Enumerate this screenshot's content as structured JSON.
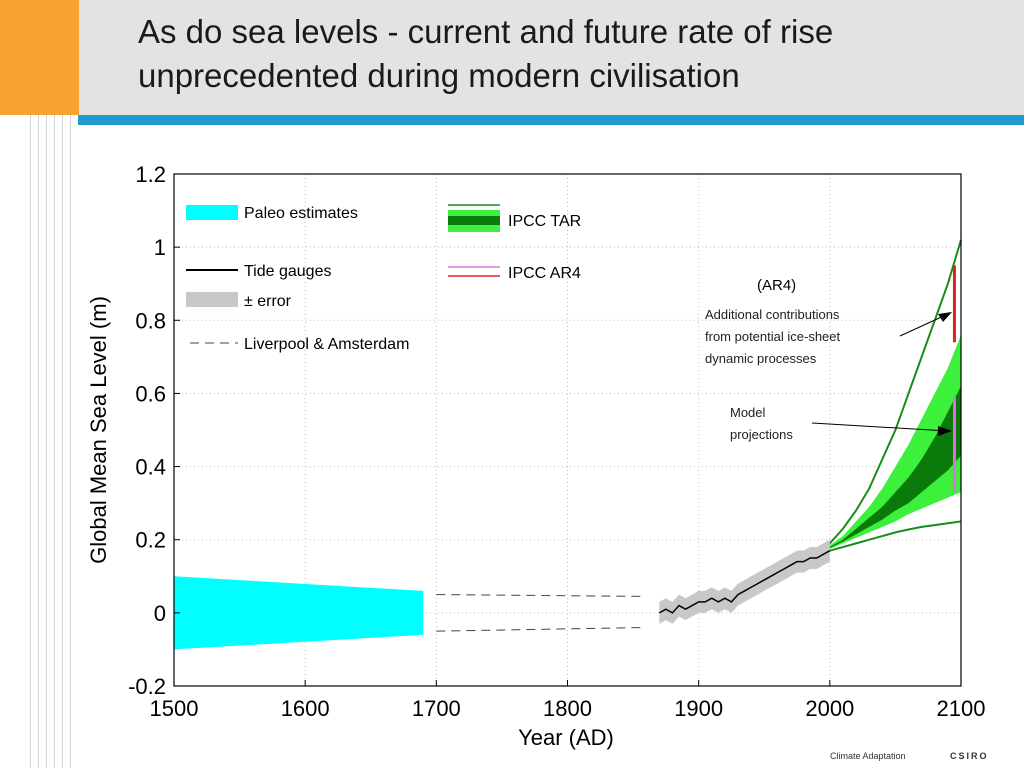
{
  "slide": {
    "title_line1": "As do sea levels - current and future rate of rise",
    "title_line2": "unprecedented during modern civilisation",
    "footer_left": "Climate Adaptation",
    "footer_right": "CSIRO"
  },
  "colors": {
    "orange": "#f6a331",
    "accent_blue": "#1f9bd0",
    "header_bg": "#e3e3e3",
    "paleo": "#00ffff",
    "error_band": "#c8c8c8",
    "tar_light": "#3cf03c",
    "tar_dark": "#0a7a0a",
    "tar_line": "#1a8c1a",
    "ar4_red": "#e02020",
    "ar4_pink": "#e070e0"
  },
  "chart_data": {
    "type": "line",
    "xlabel": "Year (AD)",
    "ylabel": "Global Mean Sea Level (m)",
    "xlim": [
      1500,
      2100
    ],
    "ylim": [
      -0.2,
      1.2
    ],
    "x_ticks": [
      "1500",
      "1600",
      "1700",
      "1800",
      "1900",
      "2000",
      "2100"
    ],
    "y_ticks": [
      "-0.2",
      "0",
      "0.2",
      "0.4",
      "0.6",
      "0.8",
      "1",
      "1.2"
    ],
    "grid": "dotted",
    "legend": [
      {
        "label": "Paleo estimates",
        "swatch": "band-cyan"
      },
      {
        "label": "Tide gauges",
        "swatch": "line-black"
      },
      {
        "label": "± error",
        "swatch": "band-grey"
      },
      {
        "label": "Liverpool & Amsterdam",
        "swatch": "dashed"
      },
      {
        "label": "IPCC TAR",
        "swatch": "band-green"
      },
      {
        "label": "IPCC AR4",
        "swatch": "line-red-pink"
      }
    ],
    "annotations": {
      "ar4_header": "(AR4)",
      "ice_sheet": [
        "Additional contributions",
        "from potential ice-sheet",
        "dynamic processes"
      ],
      "model": [
        "Model",
        "projections"
      ]
    },
    "series": [
      {
        "name": "Paleo estimates",
        "x": [
          1500,
          1690
        ],
        "upper": [
          0.1,
          0.06
        ],
        "lower": [
          -0.1,
          -0.06
        ]
      },
      {
        "name": "Liverpool & Amsterdam",
        "x": [
          1700,
          1860
        ],
        "upper": [
          0.05,
          0.045
        ],
        "lower": [
          -0.05,
          -0.04
        ]
      },
      {
        "name": "Tide gauges",
        "x": [
          1870,
          1875,
          1880,
          1885,
          1890,
          1895,
          1900,
          1905,
          1910,
          1915,
          1920,
          1925,
          1930,
          1935,
          1940,
          1945,
          1950,
          1955,
          1960,
          1965,
          1970,
          1975,
          1980,
          1985,
          1990,
          2000
        ],
        "y": [
          0.0,
          0.01,
          0.0,
          0.02,
          0.01,
          0.02,
          0.03,
          0.03,
          0.04,
          0.03,
          0.04,
          0.03,
          0.05,
          0.06,
          0.07,
          0.08,
          0.09,
          0.1,
          0.11,
          0.12,
          0.13,
          0.14,
          0.14,
          0.15,
          0.15,
          0.17
        ],
        "error": 0.03
      },
      {
        "name": "IPCC TAR",
        "x": [
          1990,
          2000,
          2010,
          2020,
          2030,
          2040,
          2050,
          2060,
          2070,
          2080,
          2090,
          2100
        ],
        "outer_upper": [
          0.16,
          0.19,
          0.23,
          0.28,
          0.34,
          0.42,
          0.5,
          0.6,
          0.7,
          0.8,
          0.9,
          1.02
        ],
        "outer_lower": [
          0.16,
          0.17,
          0.18,
          0.19,
          0.2,
          0.21,
          0.22,
          0.228,
          0.235,
          0.24,
          0.245,
          0.25
        ],
        "light_upper": [
          0.16,
          0.185,
          0.21,
          0.25,
          0.29,
          0.34,
          0.4,
          0.46,
          0.53,
          0.6,
          0.67,
          0.76
        ],
        "light_lower": [
          0.16,
          0.175,
          0.19,
          0.205,
          0.22,
          0.235,
          0.25,
          0.27,
          0.285,
          0.3,
          0.315,
          0.33
        ],
        "dark_upper": [
          0.16,
          0.18,
          0.2,
          0.23,
          0.26,
          0.29,
          0.33,
          0.37,
          0.42,
          0.48,
          0.55,
          0.62
        ],
        "dark_lower": [
          0.16,
          0.177,
          0.195,
          0.215,
          0.235,
          0.255,
          0.28,
          0.3,
          0.33,
          0.36,
          0.39,
          0.43
        ]
      },
      {
        "name": "IPCC AR4",
        "x": 2095,
        "ranges": [
          {
            "label": "red",
            "from": 0.74,
            "to": 0.95
          },
          {
            "label": "pink",
            "from": 0.33,
            "to": 0.59
          }
        ]
      }
    ]
  }
}
